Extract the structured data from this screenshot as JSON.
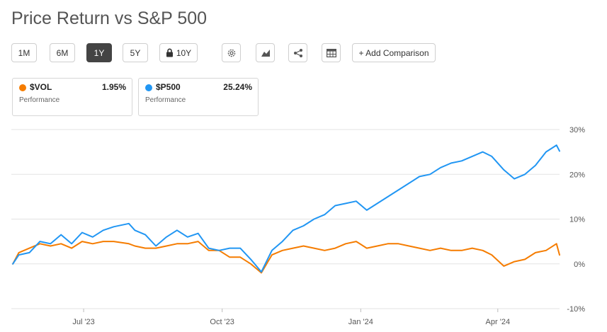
{
  "page": {
    "title": "Price Return vs S&P 500"
  },
  "toolbar": {
    "ranges": [
      "1M",
      "6M",
      "1Y",
      "5Y"
    ],
    "active_range": "1Y",
    "ten_year_label": "10Y",
    "add_comparison_label": "+ Add Comparison",
    "icons": [
      "gear-icon",
      "area-chart-icon",
      "share-icon",
      "table-icon",
      "lock-icon"
    ]
  },
  "legend": [
    {
      "symbol": "$VOL",
      "value": "1.95%",
      "subtitle": "Performance",
      "color": "#f57c00"
    },
    {
      "symbol": "$P500",
      "value": "25.24%",
      "subtitle": "Performance",
      "color": "#2196f3"
    }
  ],
  "chart_data": {
    "type": "line",
    "title": "Price Return vs S&P 500",
    "x_start": "2023-05-14",
    "x_end": "2024-05-12",
    "x_ticks": [
      {
        "date": "2023-07-01",
        "label": "Jul '23"
      },
      {
        "date": "2023-10-01",
        "label": "Oct '23"
      },
      {
        "date": "2024-01-01",
        "label": "Jan '24"
      },
      {
        "date": "2024-04-01",
        "label": "Apr '24"
      }
    ],
    "y_ticks": [
      30,
      20,
      10,
      0,
      -10
    ],
    "y_tick_labels": [
      "30%",
      "20%",
      "10%",
      "0%",
      "-10%"
    ],
    "ylim": [
      -10,
      30
    ],
    "grid": "horizontal",
    "series": [
      {
        "name": "$P500",
        "color": "#2196f3",
        "points": [
          [
            "2023-05-15",
            0
          ],
          [
            "2023-05-19",
            2
          ],
          [
            "2023-05-26",
            2.5
          ],
          [
            "2023-06-02",
            5
          ],
          [
            "2023-06-09",
            4.5
          ],
          [
            "2023-06-16",
            6.5
          ],
          [
            "2023-06-23",
            4.5
          ],
          [
            "2023-06-30",
            7
          ],
          [
            "2023-07-07",
            6
          ],
          [
            "2023-07-14",
            7.5
          ],
          [
            "2023-07-21",
            8.3
          ],
          [
            "2023-07-31",
            9
          ],
          [
            "2023-08-04",
            7.5
          ],
          [
            "2023-08-11",
            6.5
          ],
          [
            "2023-08-18",
            4
          ],
          [
            "2023-08-25",
            6
          ],
          [
            "2023-09-01",
            7.5
          ],
          [
            "2023-09-08",
            6
          ],
          [
            "2023-09-15",
            6.8
          ],
          [
            "2023-09-22",
            3.5
          ],
          [
            "2023-09-29",
            3
          ],
          [
            "2023-10-06",
            3.5
          ],
          [
            "2023-10-13",
            3.5
          ],
          [
            "2023-10-20",
            1
          ],
          [
            "2023-10-27",
            -1.8
          ],
          [
            "2023-11-03",
            3
          ],
          [
            "2023-11-10",
            5
          ],
          [
            "2023-11-17",
            7.5
          ],
          [
            "2023-11-24",
            8.5
          ],
          [
            "2023-12-01",
            10
          ],
          [
            "2023-12-08",
            11
          ],
          [
            "2023-12-15",
            13
          ],
          [
            "2023-12-22",
            13.5
          ],
          [
            "2023-12-29",
            14
          ],
          [
            "2024-01-05",
            12
          ],
          [
            "2024-01-12",
            13.5
          ],
          [
            "2024-01-19",
            15
          ],
          [
            "2024-01-26",
            16.5
          ],
          [
            "2024-02-02",
            18
          ],
          [
            "2024-02-09",
            19.5
          ],
          [
            "2024-02-16",
            20
          ],
          [
            "2024-02-23",
            21.5
          ],
          [
            "2024-03-01",
            22.5
          ],
          [
            "2024-03-08",
            23
          ],
          [
            "2024-03-15",
            24
          ],
          [
            "2024-03-22",
            25
          ],
          [
            "2024-03-28",
            24
          ],
          [
            "2024-04-05",
            21
          ],
          [
            "2024-04-12",
            19
          ],
          [
            "2024-04-19",
            20
          ],
          [
            "2024-04-26",
            22
          ],
          [
            "2024-05-03",
            25
          ],
          [
            "2024-05-10",
            26.5
          ],
          [
            "2024-05-12",
            25.2
          ]
        ]
      },
      {
        "name": "$VOL",
        "color": "#f57c00",
        "points": [
          [
            "2023-05-15",
            0
          ],
          [
            "2023-05-19",
            2.5
          ],
          [
            "2023-05-26",
            3.5
          ],
          [
            "2023-06-02",
            4.5
          ],
          [
            "2023-06-09",
            4
          ],
          [
            "2023-06-16",
            4.5
          ],
          [
            "2023-06-23",
            3.5
          ],
          [
            "2023-06-30",
            5
          ],
          [
            "2023-07-07",
            4.5
          ],
          [
            "2023-07-14",
            5
          ],
          [
            "2023-07-21",
            5
          ],
          [
            "2023-07-31",
            4.5
          ],
          [
            "2023-08-04",
            4
          ],
          [
            "2023-08-11",
            3.5
          ],
          [
            "2023-08-18",
            3.5
          ],
          [
            "2023-08-25",
            4
          ],
          [
            "2023-09-01",
            4.5
          ],
          [
            "2023-09-08",
            4.5
          ],
          [
            "2023-09-15",
            5
          ],
          [
            "2023-09-22",
            3
          ],
          [
            "2023-09-29",
            3
          ],
          [
            "2023-10-06",
            1.5
          ],
          [
            "2023-10-13",
            1.5
          ],
          [
            "2023-10-20",
            0
          ],
          [
            "2023-10-27",
            -2
          ],
          [
            "2023-11-03",
            2
          ],
          [
            "2023-11-10",
            3
          ],
          [
            "2023-11-17",
            3.5
          ],
          [
            "2023-11-24",
            4
          ],
          [
            "2023-12-01",
            3.5
          ],
          [
            "2023-12-08",
            3
          ],
          [
            "2023-12-15",
            3.5
          ],
          [
            "2023-12-22",
            4.5
          ],
          [
            "2023-12-29",
            5
          ],
          [
            "2024-01-05",
            3.5
          ],
          [
            "2024-01-12",
            4
          ],
          [
            "2024-01-19",
            4.5
          ],
          [
            "2024-01-26",
            4.5
          ],
          [
            "2024-02-02",
            4
          ],
          [
            "2024-02-09",
            3.5
          ],
          [
            "2024-02-16",
            3
          ],
          [
            "2024-02-23",
            3.5
          ],
          [
            "2024-03-01",
            3
          ],
          [
            "2024-03-08",
            3
          ],
          [
            "2024-03-15",
            3.5
          ],
          [
            "2024-03-22",
            3
          ],
          [
            "2024-03-28",
            2
          ],
          [
            "2024-04-05",
            -0.5
          ],
          [
            "2024-04-12",
            0.5
          ],
          [
            "2024-04-19",
            1
          ],
          [
            "2024-04-26",
            2.5
          ],
          [
            "2024-05-03",
            3
          ],
          [
            "2024-05-10",
            4.5
          ],
          [
            "2024-05-12",
            2
          ]
        ]
      }
    ]
  }
}
